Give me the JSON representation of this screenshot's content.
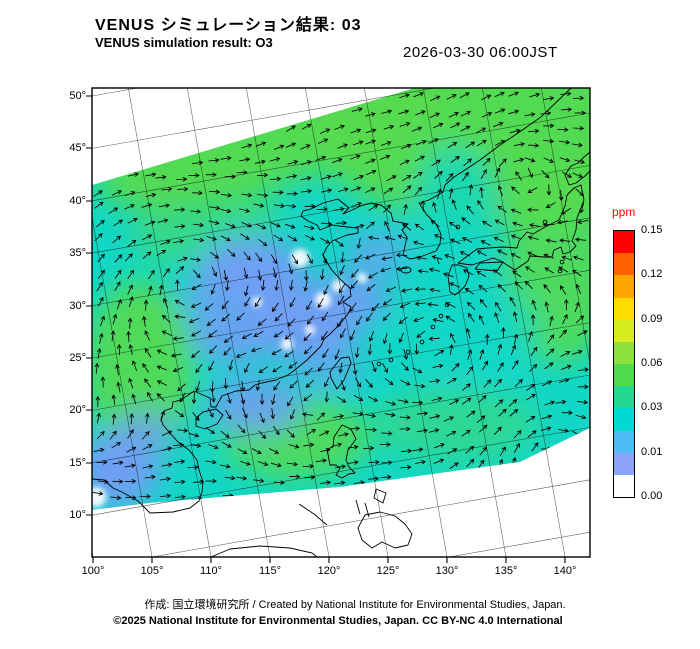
{
  "header": {
    "title_jp": "VENUS シミュレーション結果: 03",
    "title_en": "VENUS simulation result: O3",
    "datetime": "2026-03-30 06:00JST"
  },
  "map": {
    "lat_tick_labels": [
      "50°",
      "45°",
      "40°",
      "35°",
      "30°",
      "25°",
      "20°",
      "15°",
      "10°"
    ],
    "lon_tick_labels": [
      "100°",
      "105°",
      "110°",
      "115°",
      "120°",
      "125°",
      "130°",
      "135°",
      "140°"
    ]
  },
  "colorbar": {
    "unit": "ppm",
    "unit_color": "#ff0000",
    "tick_labels": [
      "0.15",
      "0.12",
      "0.09",
      "0.06",
      "0.03",
      "0.01",
      "0.00"
    ],
    "colors_top_to_bottom": [
      "#ff0000",
      "#ff6000",
      "#ffa500",
      "#ffdc00",
      "#d6ec1e",
      "#8ce03c",
      "#50d84e",
      "#22d890",
      "#00d8d2",
      "#4cbcf4",
      "#8ca4f8",
      "#ffffff"
    ]
  },
  "field_palette": {
    "base_cyan": "#12d7c6",
    "green": "#57da4e",
    "blue": "#6f9ff4",
    "white": "#ffffff"
  },
  "footer": {
    "credit": "作成: 国立環境研究所 / Created by National Institute for Environmental Studies, Japan.",
    "copyright": "©2025 National Institute for Environmental Studies, Japan. CC BY-NC 4.0 International"
  }
}
